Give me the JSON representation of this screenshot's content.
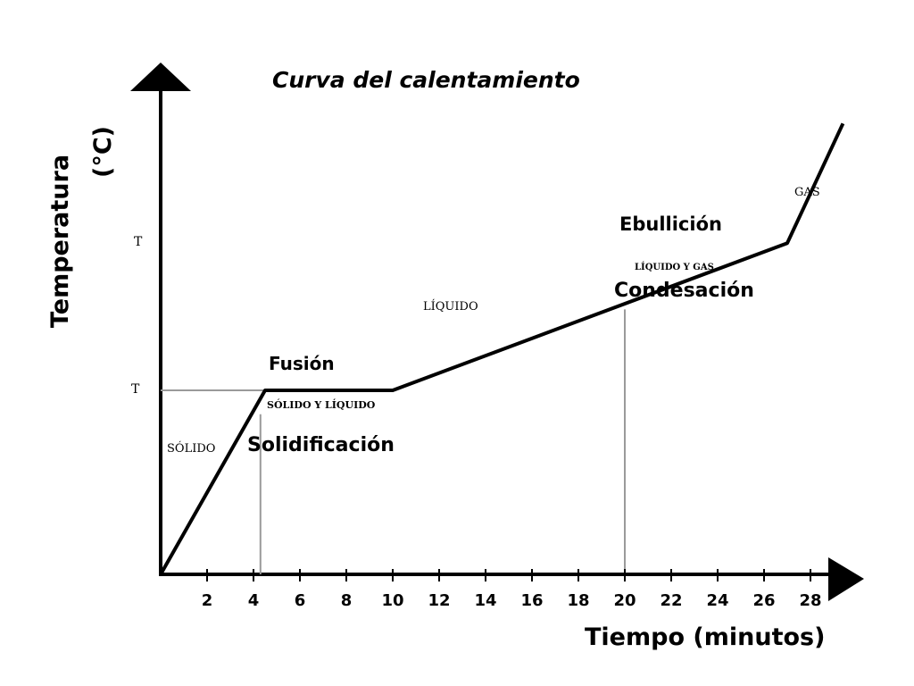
{
  "chart_data": {
    "type": "line",
    "title": "Curva del calentamiento",
    "xlabel": "Tiempo (minutos)",
    "ylabel": "Temperatura",
    "ylabel_unit": "(°C)",
    "x_ticks": [
      "2",
      "4",
      "6",
      "8",
      "10",
      "12",
      "14",
      "16",
      "18",
      "20",
      "22",
      "24",
      "26",
      "28"
    ],
    "y_tick_labels": [
      "T",
      "T"
    ],
    "grid": false,
    "legend": "none",
    "series": [
      {
        "values": [
          {
            "x": 0,
            "y": 0
          },
          {
            "x": 4.5,
            "y": 1
          },
          {
            "x": 10,
            "y": 1
          },
          {
            "x": 27,
            "y": 1.8
          },
          {
            "x": 29.4,
            "y": 2.45
          }
        ]
      }
    ],
    "annotations": {
      "fusion": "Fusión",
      "solidificacion": "Solidificación",
      "ebullicion": "Ebullición",
      "condensacion": "Condesación",
      "solido": "SÓLIDO",
      "solido_liquido": "SÓLIDO Y LÍQUIDO",
      "liquido": "LÍQUIDO",
      "liquido_gas": "LÍQUIDO Y GAS",
      "gas": "GAS"
    }
  }
}
